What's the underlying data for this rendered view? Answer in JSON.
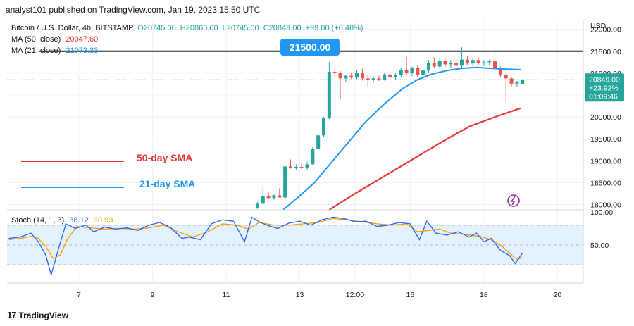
{
  "header": {
    "published": "analyst101 published on TradingView.com, Jan 19, 2023 15:50 UTC"
  },
  "legend": {
    "symbol": "Bitcoin / U.S. Dollar, 4h, BITSTAMP",
    "ohlc": {
      "o": "O20745.00",
      "h": "H20865.00",
      "l": "L20745.00",
      "c": "C20849.00",
      "chg": "+99.00 (+0.48%)"
    },
    "ma50_label": "MA (50, close)",
    "ma50_value": "20047.60",
    "ma21_label": "MA (21, close)",
    "ma21_value": "21073.33",
    "stoch_label": "Stoch (14, 1, 3)",
    "stoch_k": "38.12",
    "stoch_d": "30.93"
  },
  "annotations": {
    "level_badge": "21500.00",
    "sma50_text": "50-day SMA",
    "sma21_text": "21-day SMA"
  },
  "price_tag": {
    "price": "20849.00",
    "pct": "+23.92%",
    "countdown": "01:09:46"
  },
  "footer": {
    "brand": "TradingView",
    "logo_text": "17"
  },
  "colors": {
    "up": "#26a69a",
    "down": "#ef5350",
    "ma50": "#e53935",
    "ma21": "#2196f3",
    "stoch_k": "#2962ff",
    "stoch_d": "#ff9800",
    "stoch_band": "#e3f2fd",
    "tag": "#26a69a"
  },
  "chart_data": {
    "type": "candlestick",
    "y_axis": {
      "label": "USD",
      "ticks": [
        18000,
        18500,
        19000,
        19500,
        20000,
        20500,
        21000,
        21500,
        22000
      ],
      "tick_labels": [
        "18000.00",
        "18500.00",
        "19000.00",
        "19500.00",
        "20000.00",
        "20500.00",
        "21000.00",
        "21500.00",
        "22000.00"
      ],
      "range": [
        17880,
        22220
      ]
    },
    "x_axis": {
      "tick_labels": [
        "7",
        "9",
        "11",
        "13",
        "12:00",
        "16",
        "18",
        "20"
      ],
      "tick_days": [
        7,
        9,
        11,
        13,
        14.5,
        16,
        18,
        20
      ],
      "range": [
        5.05,
        20.7
      ]
    },
    "horizontal_level": 21500,
    "candles": [
      {
        "t": 11.85,
        "o": 17930,
        "h": 18060,
        "l": 17900,
        "c": 18020
      },
      {
        "t": 12.0,
        "o": 18020,
        "h": 18400,
        "l": 17990,
        "c": 18190
      },
      {
        "t": 12.15,
        "o": 18190,
        "h": 18280,
        "l": 18120,
        "c": 18150
      },
      {
        "t": 12.3,
        "o": 18150,
        "h": 18230,
        "l": 18110,
        "c": 18210
      },
      {
        "t": 12.45,
        "o": 18210,
        "h": 18370,
        "l": 18170,
        "c": 18160
      },
      {
        "t": 12.6,
        "o": 18160,
        "h": 18900,
        "l": 18080,
        "c": 18870
      },
      {
        "t": 12.75,
        "o": 18870,
        "h": 19030,
        "l": 18820,
        "c": 18840
      },
      {
        "t": 12.9,
        "o": 18840,
        "h": 18920,
        "l": 18790,
        "c": 18860
      },
      {
        "t": 13.05,
        "o": 18860,
        "h": 18940,
        "l": 18800,
        "c": 18830
      },
      {
        "t": 13.2,
        "o": 18830,
        "h": 18980,
        "l": 18790,
        "c": 18920
      },
      {
        "t": 13.35,
        "o": 18920,
        "h": 19310,
        "l": 18900,
        "c": 19270
      },
      {
        "t": 13.5,
        "o": 19270,
        "h": 19620,
        "l": 19240,
        "c": 19580
      },
      {
        "t": 13.65,
        "o": 19580,
        "h": 20000,
        "l": 19540,
        "c": 19970
      },
      {
        "t": 13.8,
        "o": 19970,
        "h": 21260,
        "l": 19950,
        "c": 21030
      },
      {
        "t": 13.95,
        "o": 21030,
        "h": 21120,
        "l": 20920,
        "c": 21000
      },
      {
        "t": 14.1,
        "o": 21000,
        "h": 21050,
        "l": 20400,
        "c": 20880
      },
      {
        "t": 14.25,
        "o": 20880,
        "h": 20960,
        "l": 20800,
        "c": 20940
      },
      {
        "t": 14.4,
        "o": 20940,
        "h": 21000,
        "l": 20860,
        "c": 20900
      },
      {
        "t": 14.55,
        "o": 20900,
        "h": 21060,
        "l": 20860,
        "c": 21010
      },
      {
        "t": 14.7,
        "o": 21010,
        "h": 21100,
        "l": 20830,
        "c": 20880
      },
      {
        "t": 14.85,
        "o": 20880,
        "h": 20950,
        "l": 20700,
        "c": 20850
      },
      {
        "t": 15.0,
        "o": 20850,
        "h": 20930,
        "l": 20780,
        "c": 20880
      },
      {
        "t": 15.15,
        "o": 20880,
        "h": 20940,
        "l": 20820,
        "c": 20850
      },
      {
        "t": 15.3,
        "o": 20850,
        "h": 21010,
        "l": 20830,
        "c": 20970
      },
      {
        "t": 15.45,
        "o": 20970,
        "h": 21080,
        "l": 20880,
        "c": 20900
      },
      {
        "t": 15.6,
        "o": 20900,
        "h": 21000,
        "l": 20850,
        "c": 20950
      },
      {
        "t": 15.75,
        "o": 20950,
        "h": 21120,
        "l": 20900,
        "c": 21080
      },
      {
        "t": 15.9,
        "o": 21080,
        "h": 21370,
        "l": 20950,
        "c": 21000
      },
      {
        "t": 16.05,
        "o": 21000,
        "h": 21150,
        "l": 20930,
        "c": 21120
      },
      {
        "t": 16.2,
        "o": 21120,
        "h": 21180,
        "l": 20900,
        "c": 20960
      },
      {
        "t": 16.35,
        "o": 20960,
        "h": 21100,
        "l": 20920,
        "c": 21060
      },
      {
        "t": 16.5,
        "o": 21060,
        "h": 21300,
        "l": 21000,
        "c": 21230
      },
      {
        "t": 16.65,
        "o": 21230,
        "h": 21360,
        "l": 21120,
        "c": 21150
      },
      {
        "t": 16.8,
        "o": 21150,
        "h": 21350,
        "l": 21100,
        "c": 21280
      },
      {
        "t": 16.95,
        "o": 21280,
        "h": 21330,
        "l": 21140,
        "c": 21200
      },
      {
        "t": 17.1,
        "o": 21200,
        "h": 21300,
        "l": 21120,
        "c": 21240
      },
      {
        "t": 17.25,
        "o": 21240,
        "h": 21320,
        "l": 21150,
        "c": 21170
      },
      {
        "t": 17.4,
        "o": 21170,
        "h": 21590,
        "l": 21120,
        "c": 21310
      },
      {
        "t": 17.55,
        "o": 21310,
        "h": 21390,
        "l": 21180,
        "c": 21220
      },
      {
        "t": 17.7,
        "o": 21220,
        "h": 21350,
        "l": 21160,
        "c": 21300
      },
      {
        "t": 17.85,
        "o": 21300,
        "h": 21360,
        "l": 21180,
        "c": 21230
      },
      {
        "t": 18.0,
        "o": 21230,
        "h": 21300,
        "l": 21160,
        "c": 21250
      },
      {
        "t": 18.15,
        "o": 21250,
        "h": 21310,
        "l": 21180,
        "c": 21270
      },
      {
        "t": 18.3,
        "o": 21270,
        "h": 21620,
        "l": 21050,
        "c": 21100
      },
      {
        "t": 18.45,
        "o": 21100,
        "h": 21150,
        "l": 20900,
        "c": 20950
      },
      {
        "t": 18.6,
        "o": 20950,
        "h": 21050,
        "l": 20350,
        "c": 20880
      },
      {
        "t": 18.75,
        "o": 20880,
        "h": 20900,
        "l": 20700,
        "c": 20760
      },
      {
        "t": 18.9,
        "o": 20760,
        "h": 20820,
        "l": 20680,
        "c": 20790
      },
      {
        "t": 19.05,
        "o": 20745,
        "h": 20865,
        "l": 20745,
        "c": 20849
      }
    ],
    "ma21": [
      [
        12.55,
        17880
      ],
      [
        13.0,
        18200
      ],
      [
        13.4,
        18500
      ],
      [
        13.8,
        18900
      ],
      [
        14.3,
        19400
      ],
      [
        14.8,
        19900
      ],
      [
        15.3,
        20300
      ],
      [
        15.8,
        20650
      ],
      [
        16.2,
        20850
      ],
      [
        16.6,
        20980
      ],
      [
        17.0,
        21060
      ],
      [
        17.4,
        21110
      ],
      [
        17.8,
        21130
      ],
      [
        18.2,
        21110
      ],
      [
        18.6,
        21090
      ],
      [
        19.0,
        21080
      ]
    ],
    "ma50": [
      [
        13.8,
        17880
      ],
      [
        14.5,
        18250
      ],
      [
        15.3,
        18650
      ],
      [
        16.1,
        19050
      ],
      [
        16.9,
        19450
      ],
      [
        17.6,
        19780
      ],
      [
        18.3,
        20000
      ],
      [
        19.0,
        20200
      ]
    ],
    "stochastic": {
      "label": "Stoch (14, 1, 3)",
      "k_last": 38.12,
      "d_last": 30.93,
      "range": [
        0,
        100
      ],
      "ticks": [
        50,
        100
      ],
      "tick_labels": [
        "50.00",
        "100.00"
      ],
      "band": [
        20,
        80
      ],
      "k": [
        [
          5.1,
          60
        ],
        [
          5.4,
          62
        ],
        [
          5.7,
          68
        ],
        [
          5.9,
          55
        ],
        [
          6.1,
          35
        ],
        [
          6.25,
          5
        ],
        [
          6.45,
          45
        ],
        [
          6.65,
          82
        ],
        [
          6.9,
          75
        ],
        [
          7.2,
          80
        ],
        [
          7.4,
          70
        ],
        [
          7.7,
          77
        ],
        [
          8.0,
          74
        ],
        [
          8.3,
          76
        ],
        [
          8.6,
          72
        ],
        [
          8.9,
          80
        ],
        [
          9.2,
          84
        ],
        [
          9.5,
          76
        ],
        [
          9.8,
          60
        ],
        [
          10.0,
          62
        ],
        [
          10.3,
          58
        ],
        [
          10.6,
          82
        ],
        [
          10.9,
          88
        ],
        [
          11.2,
          86
        ],
        [
          11.5,
          55
        ],
        [
          11.7,
          92
        ],
        [
          11.9,
          85
        ],
        [
          12.1,
          80
        ],
        [
          12.4,
          75
        ],
        [
          12.7,
          83
        ],
        [
          13.0,
          86
        ],
        [
          13.3,
          80
        ],
        [
          13.6,
          88
        ],
        [
          13.9,
          92
        ],
        [
          14.2,
          90
        ],
        [
          14.5,
          85
        ],
        [
          14.8,
          86
        ],
        [
          15.1,
          78
        ],
        [
          15.4,
          80
        ],
        [
          15.7,
          84
        ],
        [
          16.0,
          82
        ],
        [
          16.25,
          58
        ],
        [
          16.45,
          86
        ],
        [
          16.7,
          68
        ],
        [
          17.0,
          65
        ],
        [
          17.3,
          70
        ],
        [
          17.6,
          62
        ],
        [
          17.8,
          68
        ],
        [
          18.0,
          55
        ],
        [
          18.2,
          60
        ],
        [
          18.45,
          42
        ],
        [
          18.7,
          34
        ],
        [
          18.85,
          22
        ],
        [
          19.05,
          38
        ]
      ],
      "d": [
        [
          5.1,
          58
        ],
        [
          5.4,
          60
        ],
        [
          5.7,
          63
        ],
        [
          5.9,
          60
        ],
        [
          6.1,
          48
        ],
        [
          6.3,
          30
        ],
        [
          6.5,
          35
        ],
        [
          6.7,
          60
        ],
        [
          6.95,
          78
        ],
        [
          7.3,
          76
        ],
        [
          7.7,
          74
        ],
        [
          8.1,
          75
        ],
        [
          8.5,
          74
        ],
        [
          8.9,
          76
        ],
        [
          9.3,
          80
        ],
        [
          9.7,
          70
        ],
        [
          10.1,
          62
        ],
        [
          10.5,
          70
        ],
        [
          10.9,
          82
        ],
        [
          11.3,
          80
        ],
        [
          11.6,
          74
        ],
        [
          11.9,
          84
        ],
        [
          12.3,
          80
        ],
        [
          12.7,
          80
        ],
        [
          13.1,
          82
        ],
        [
          13.5,
          84
        ],
        [
          13.9,
          90
        ],
        [
          14.3,
          88
        ],
        [
          14.7,
          85
        ],
        [
          15.1,
          82
        ],
        [
          15.5,
          80
        ],
        [
          15.9,
          82
        ],
        [
          16.2,
          70
        ],
        [
          16.5,
          72
        ],
        [
          16.8,
          74
        ],
        [
          17.1,
          68
        ],
        [
          17.5,
          66
        ],
        [
          17.9,
          63
        ],
        [
          18.2,
          58
        ],
        [
          18.5,
          48
        ],
        [
          18.75,
          35
        ],
        [
          18.9,
          28
        ],
        [
          19.05,
          31
        ]
      ]
    }
  }
}
